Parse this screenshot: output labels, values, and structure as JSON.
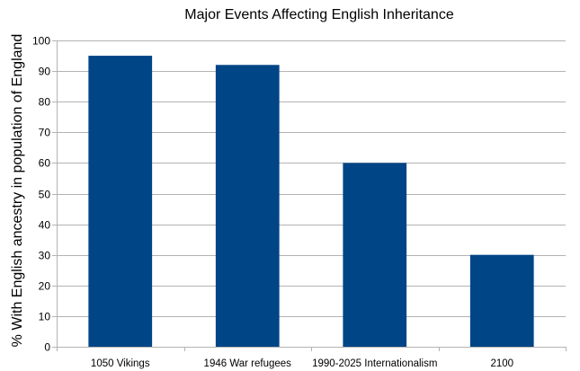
{
  "chart_data": {
    "type": "bar",
    "title": "Major Events Affecting English Inheritance",
    "xlabel": "",
    "ylabel": "% With English ancestry  in population of England",
    "categories": [
      "1050 Vikings",
      "1946 War refugees",
      "1990-2025 Internationalism",
      "2100"
    ],
    "values": [
      95,
      92,
      60,
      30
    ],
    "ylim": [
      0,
      100
    ],
    "yticks": [
      0,
      10,
      20,
      30,
      40,
      50,
      60,
      70,
      80,
      90,
      100
    ],
    "grid": true,
    "legend": "none",
    "bar_color": "#004586",
    "grid_color": "#b3b3b3",
    "axis_color": "#b3b3b3"
  }
}
